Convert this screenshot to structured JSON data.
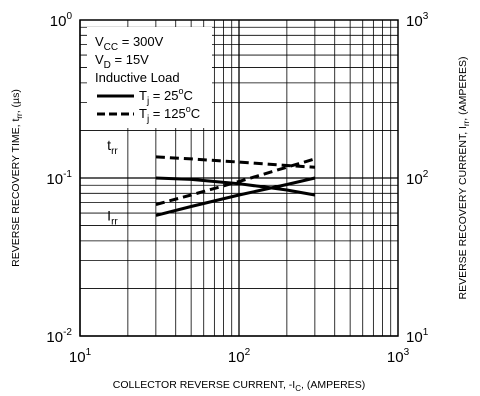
{
  "chart_data": {
    "type": "line",
    "title": "",
    "xlabel": "COLLECTOR REVERSE CURRENT, -I_C, (AMPERES)",
    "ylabel_left": "REVERSE RECOVERY TIME, t_rr, (µs)",
    "ylabel_right": "REVERSE RECOVERY CURRENT, I_rr, (AMPERES)",
    "x_scale": "log",
    "y_left_scale": "log",
    "y_right_scale": "log",
    "xlim": [
      10,
      1000
    ],
    "ylim_left": [
      0.01,
      1
    ],
    "ylim_right": [
      10,
      1000
    ],
    "grid": true,
    "x_ticks": [
      {
        "base": "10",
        "exp": "1",
        "value": 10
      },
      {
        "base": "10",
        "exp": "2",
        "value": 100
      },
      {
        "base": "10",
        "exp": "3",
        "value": 1000
      }
    ],
    "y_left_ticks": [
      {
        "base": "10",
        "exp": "0",
        "value": 1
      },
      {
        "base": "10",
        "exp": "-1",
        "value": 0.1
      },
      {
        "base": "10",
        "exp": "-2",
        "value": 0.01
      }
    ],
    "y_right_ticks": [
      {
        "base": "10",
        "exp": "3",
        "value": 1000
      },
      {
        "base": "10",
        "exp": "2",
        "value": 100
      },
      {
        "base": "10",
        "exp": "1",
        "value": 10
      }
    ],
    "legend": {
      "placement": "top-left",
      "conditions": [
        {
          "sym": "V",
          "sub": "CC",
          "rest": " = 300V"
        },
        {
          "sym": "V",
          "sub": "D",
          "rest": " = 15V"
        }
      ],
      "load": "Inductive Load",
      "entries": [
        {
          "sym": "T",
          "sub": "j",
          "val": " = 25",
          "sup": "o",
          "unit": "C",
          "style": "solid"
        },
        {
          "sym": "T",
          "sub": "j",
          "val": " = 125",
          "sup": "o",
          "unit": "C",
          "style": "dashed"
        }
      ]
    },
    "annotations": [
      {
        "sym": "t",
        "sub": "rr",
        "x": 16,
        "y": 0.15,
        "axis": "left"
      },
      {
        "sym": "I",
        "sub": "rr",
        "x": 16,
        "y": 0.054,
        "axis": "left"
      }
    ],
    "series": [
      {
        "quantity": "t_rr",
        "temp": "25",
        "axis": "left",
        "style": "solid",
        "x": [
          30,
          50,
          100,
          200,
          300
        ],
        "y": [
          0.1,
          0.098,
          0.092,
          0.084,
          0.078
        ]
      },
      {
        "quantity": "t_rr",
        "temp": "125",
        "axis": "left",
        "style": "dashed",
        "x": [
          30,
          50,
          100,
          200,
          300
        ],
        "y": [
          0.136,
          0.132,
          0.126,
          0.12,
          0.117
        ]
      },
      {
        "quantity": "I_rr",
        "temp": "25",
        "axis": "right",
        "style": "solid",
        "x": [
          30,
          50,
          100,
          200,
          300
        ],
        "y": [
          58,
          66,
          78,
          91,
          100
        ]
      },
      {
        "quantity": "I_rr",
        "temp": "125",
        "axis": "right",
        "style": "dashed",
        "x": [
          30,
          50,
          100,
          200,
          300
        ],
        "y": [
          68,
          78,
          95,
          117,
          132
        ]
      }
    ]
  }
}
